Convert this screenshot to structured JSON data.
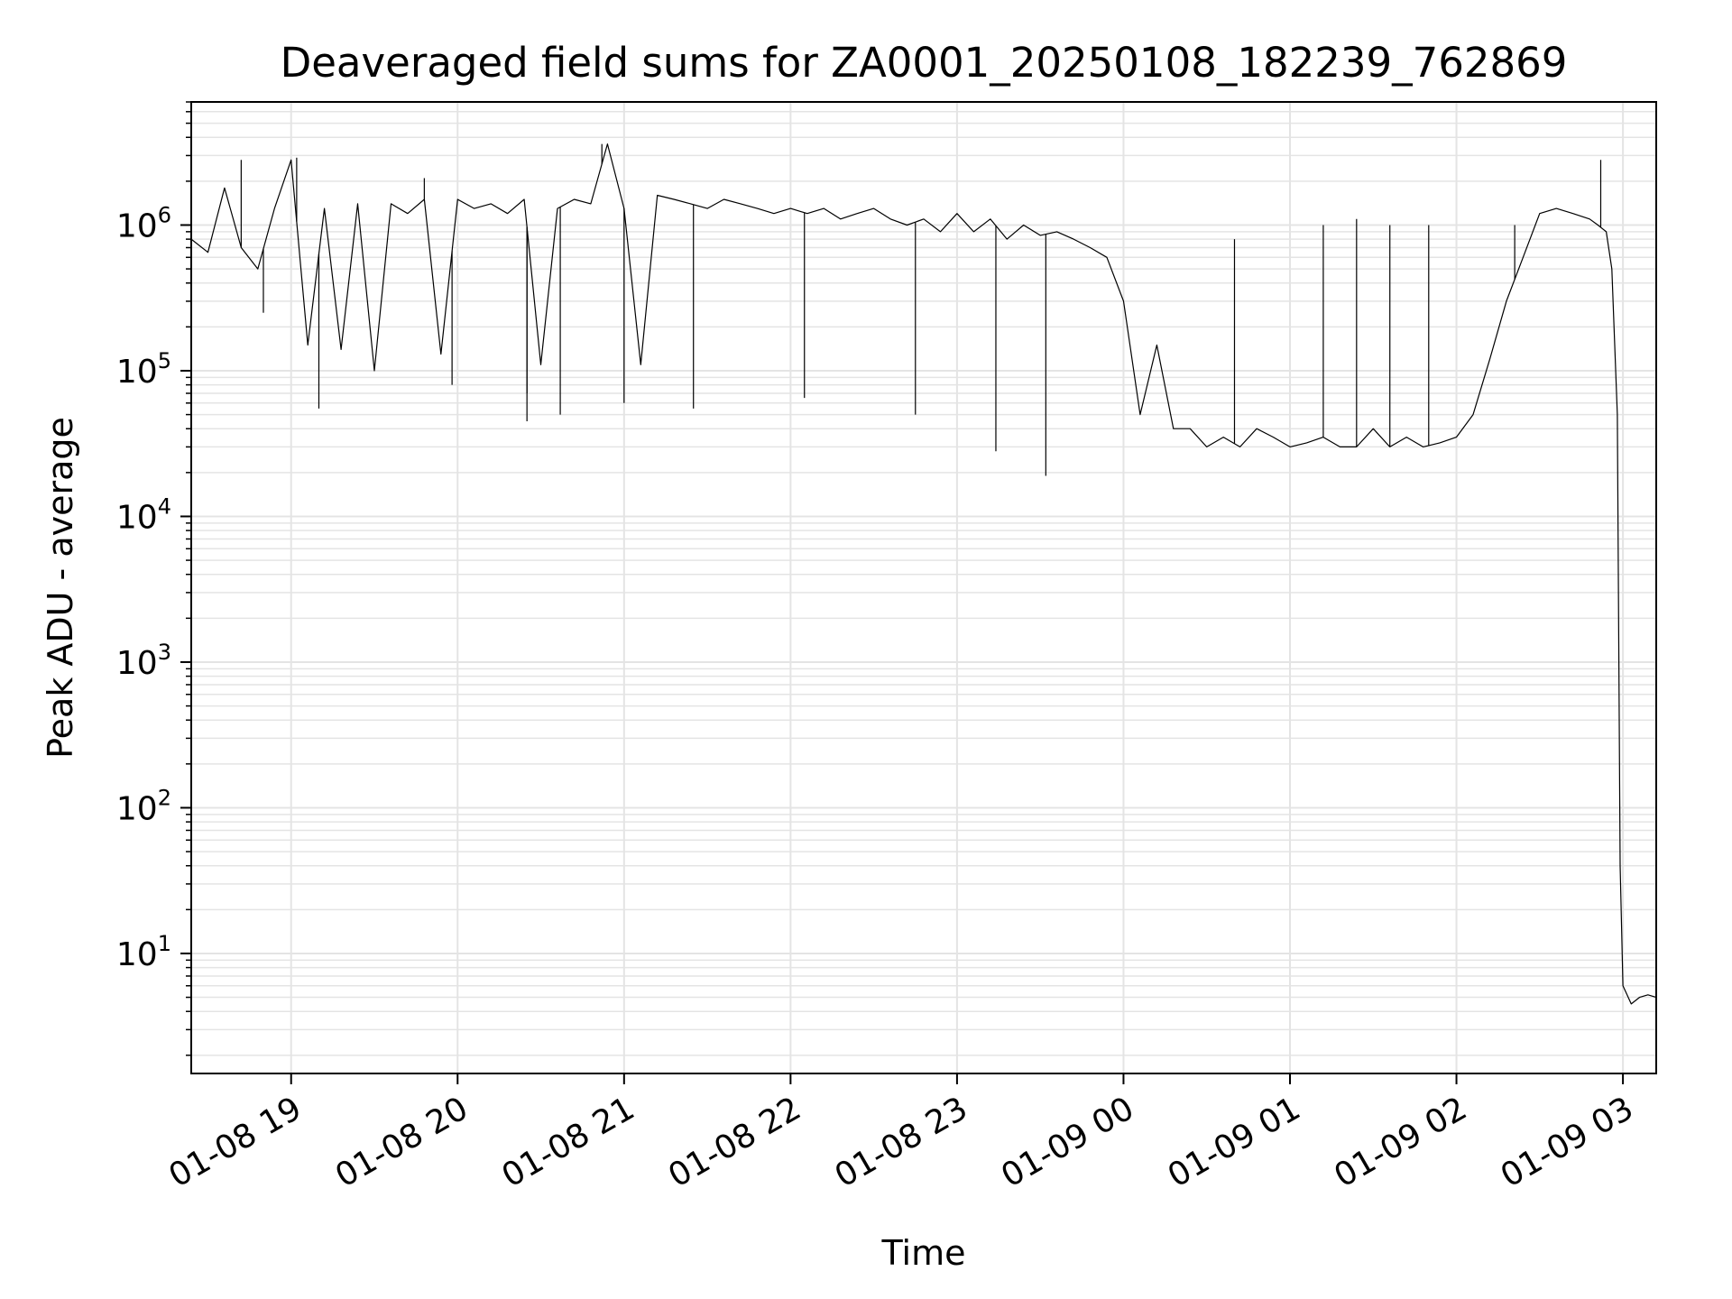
{
  "chart_data": {
    "type": "line",
    "title": "Deaveraged field sums for ZA0001_20250108_182239_762869",
    "xlabel": "Time",
    "ylabel": "Peak ADU - average",
    "yscale": "log",
    "xlim": [
      "2025-01-08T18:24",
      "2025-01-09T03:12"
    ],
    "ylim": [
      1.5,
      7000000
    ],
    "grid": true,
    "line_color": "#000000",
    "grid_color": "#e4e4e4",
    "x_ticks": [
      {
        "value": "2025-01-08T19:00",
        "label": "01-08 19"
      },
      {
        "value": "2025-01-08T20:00",
        "label": "01-08 20"
      },
      {
        "value": "2025-01-08T21:00",
        "label": "01-08 21"
      },
      {
        "value": "2025-01-08T22:00",
        "label": "01-08 22"
      },
      {
        "value": "2025-01-08T23:00",
        "label": "01-08 23"
      },
      {
        "value": "2025-01-09T00:00",
        "label": "01-09 00"
      },
      {
        "value": "2025-01-09T01:00",
        "label": "01-09 01"
      },
      {
        "value": "2025-01-09T02:00",
        "label": "01-09 02"
      },
      {
        "value": "2025-01-09T03:00",
        "label": "01-09 03"
      }
    ],
    "y_ticks": [
      {
        "value": 10,
        "base": "10",
        "exp": "1"
      },
      {
        "value": 100,
        "base": "10",
        "exp": "2"
      },
      {
        "value": 1000,
        "base": "10",
        "exp": "3"
      },
      {
        "value": 10000,
        "base": "10",
        "exp": "4"
      },
      {
        "value": 100000,
        "base": "10",
        "exp": "5"
      },
      {
        "value": 1000000,
        "base": "10",
        "exp": "6"
      }
    ],
    "series": [
      {
        "x": [
          "2025-01-08T18:24",
          "2025-01-08T18:30",
          "2025-01-08T18:36",
          "2025-01-08T18:42",
          "2025-01-08T18:48",
          "2025-01-08T18:54",
          "2025-01-08T19:00",
          "2025-01-08T19:06",
          "2025-01-08T19:12",
          "2025-01-08T19:18",
          "2025-01-08T19:24",
          "2025-01-08T19:30",
          "2025-01-08T19:36",
          "2025-01-08T19:42",
          "2025-01-08T19:48",
          "2025-01-08T19:54",
          "2025-01-08T20:00",
          "2025-01-08T20:06",
          "2025-01-08T20:12",
          "2025-01-08T20:18",
          "2025-01-08T20:24",
          "2025-01-08T20:30",
          "2025-01-08T20:36",
          "2025-01-08T20:42",
          "2025-01-08T20:48",
          "2025-01-08T20:54",
          "2025-01-08T21:00",
          "2025-01-08T21:06",
          "2025-01-08T21:12",
          "2025-01-08T21:18",
          "2025-01-08T21:24",
          "2025-01-08T21:30",
          "2025-01-08T21:36",
          "2025-01-08T21:42",
          "2025-01-08T21:48",
          "2025-01-08T21:54",
          "2025-01-08T22:00",
          "2025-01-08T22:06",
          "2025-01-08T22:12",
          "2025-01-08T22:18",
          "2025-01-08T22:24",
          "2025-01-08T22:30",
          "2025-01-08T22:36",
          "2025-01-08T22:42",
          "2025-01-08T22:48",
          "2025-01-08T22:54",
          "2025-01-08T23:00",
          "2025-01-08T23:06",
          "2025-01-08T23:12",
          "2025-01-08T23:18",
          "2025-01-08T23:24",
          "2025-01-08T23:30",
          "2025-01-08T23:36",
          "2025-01-08T23:42",
          "2025-01-08T23:48",
          "2025-01-08T23:54",
          "2025-01-09T00:00",
          "2025-01-09T00:06",
          "2025-01-09T00:12",
          "2025-01-09T00:18",
          "2025-01-09T00:24",
          "2025-01-09T00:30",
          "2025-01-09T00:36",
          "2025-01-09T00:42",
          "2025-01-09T00:48",
          "2025-01-09T00:54",
          "2025-01-09T01:00",
          "2025-01-09T01:06",
          "2025-01-09T01:12",
          "2025-01-09T01:18",
          "2025-01-09T01:24",
          "2025-01-09T01:30",
          "2025-01-09T01:36",
          "2025-01-09T01:42",
          "2025-01-09T01:48",
          "2025-01-09T01:54",
          "2025-01-09T02:00",
          "2025-01-09T02:06",
          "2025-01-09T02:12",
          "2025-01-09T02:18",
          "2025-01-09T02:24",
          "2025-01-09T02:30",
          "2025-01-09T02:36",
          "2025-01-09T02:42",
          "2025-01-09T02:48",
          "2025-01-09T02:51",
          "2025-01-09T02:54",
          "2025-01-09T02:56",
          "2025-01-09T02:58",
          "2025-01-09T02:59",
          "2025-01-09T03:00",
          "2025-01-09T03:03",
          "2025-01-09T03:06",
          "2025-01-09T03:09",
          "2025-01-09T03:12"
        ],
        "values": [
          800000,
          650000,
          1800000,
          700000,
          500000,
          1300000,
          2800000,
          150000,
          1300000,
          140000,
          1400000,
          100000,
          1400000,
          1200000,
          1500000,
          130000,
          1500000,
          1300000,
          1400000,
          1200000,
          1500000,
          110000,
          1300000,
          1500000,
          1400000,
          3600000,
          1300000,
          110000,
          1600000,
          1500000,
          1400000,
          1300000,
          1500000,
          1400000,
          1300000,
          1200000,
          1300000,
          1200000,
          1300000,
          1100000,
          1200000,
          1300000,
          1100000,
          1000000,
          1100000,
          900000,
          1200000,
          900000,
          1100000,
          800000,
          1000000,
          850000,
          900000,
          800000,
          700000,
          600000,
          300000,
          50000,
          150000,
          40000,
          40000,
          30000,
          35000,
          30000,
          40000,
          35000,
          30000,
          32000,
          35000,
          30000,
          30000,
          40000,
          30000,
          35000,
          30000,
          32000,
          35000,
          50000,
          120000,
          300000,
          600000,
          1200000,
          1300000,
          1200000,
          1100000,
          1000000,
          900000,
          500000,
          50000,
          40,
          6,
          4.5,
          5,
          5.2,
          5
        ],
        "spikes": [
          {
            "x": "2025-01-08T18:42",
            "value": 2800000
          },
          {
            "x": "2025-01-08T18:50",
            "value": 250000
          },
          {
            "x": "2025-01-08T19:02",
            "value": 2900000
          },
          {
            "x": "2025-01-08T19:10",
            "value": 55000
          },
          {
            "x": "2025-01-08T19:48",
            "value": 2100000
          },
          {
            "x": "2025-01-08T19:58",
            "value": 80000
          },
          {
            "x": "2025-01-08T20:25",
            "value": 70000
          },
          {
            "x": "2025-01-08T20:25",
            "value": 45000
          },
          {
            "x": "2025-01-08T20:37",
            "value": 50000
          },
          {
            "x": "2025-01-08T20:52",
            "value": 3600000
          },
          {
            "x": "2025-01-08T21:00",
            "value": 60000
          },
          {
            "x": "2025-01-08T21:25",
            "value": 55000
          },
          {
            "x": "2025-01-08T22:05",
            "value": 65000
          },
          {
            "x": "2025-01-08T22:45",
            "value": 50000
          },
          {
            "x": "2025-01-08T23:14",
            "value": 28000
          },
          {
            "x": "2025-01-08T23:32",
            "value": 19000
          },
          {
            "x": "2025-01-09T00:40",
            "value": 800000
          },
          {
            "x": "2025-01-09T01:12",
            "value": 1000000
          },
          {
            "x": "2025-01-09T01:24",
            "value": 1100000
          },
          {
            "x": "2025-01-09T01:36",
            "value": 1000000
          },
          {
            "x": "2025-01-09T01:50",
            "value": 1000000
          },
          {
            "x": "2025-01-09T02:21",
            "value": 1000000
          },
          {
            "x": "2025-01-09T02:52",
            "value": 2800000
          }
        ]
      }
    ]
  }
}
